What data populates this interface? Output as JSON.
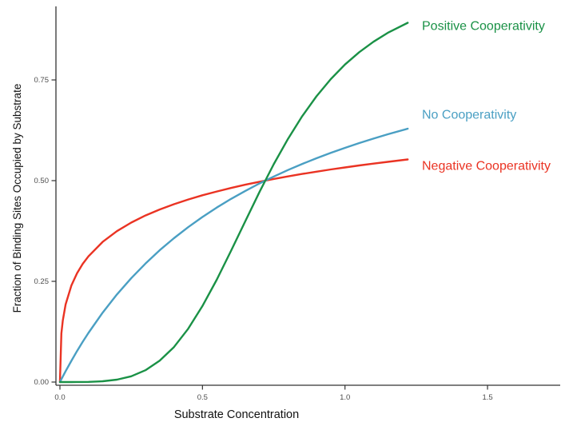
{
  "chart_data": {
    "type": "line",
    "title": "",
    "xlabel": "Substrate Concentration",
    "ylabel": "Fraction of Binding Sites Occupied by Substrate",
    "xlim": [
      -0.015,
      1.77
    ],
    "ylim": [
      -0.01,
      0.95
    ],
    "xticks": [
      0,
      0.5,
      1.0,
      1.5
    ],
    "xtick_labels": [
      "0.0",
      "0.5",
      "1.0",
      "1.5"
    ],
    "yticks": [
      0,
      0.25,
      0.5,
      0.75
    ],
    "ytick_labels": [
      "0.00",
      "0.25",
      "0.50",
      "0.75"
    ],
    "grid": false,
    "legend_position": "direct-labels-right-of-curves",
    "x": [
      0,
      0.005,
      0.01,
      0.02,
      0.04,
      0.06,
      0.08,
      0.1,
      0.15,
      0.2,
      0.25,
      0.3,
      0.35,
      0.4,
      0.45,
      0.5,
      0.55,
      0.6,
      0.65,
      0.7,
      0.75,
      0.8,
      0.85,
      0.9,
      0.95,
      1.0,
      1.05,
      1.1,
      1.15,
      1.22
    ],
    "series": [
      {
        "name": "Positive Cooperativity",
        "color": "#1a9146",
        "values": [
          0,
          0,
          0,
          0,
          0,
          0.0001,
          0.0002,
          0.0004,
          0.0019,
          0.0059,
          0.0143,
          0.0293,
          0.0529,
          0.087,
          0.1324,
          0.1887,
          0.254,
          0.3253,
          0.3991,
          0.4718,
          0.5407,
          0.6038,
          0.6602,
          0.7094,
          0.7519,
          0.7882,
          0.8189,
          0.8449,
          0.8668,
          0.8918
        ]
      },
      {
        "name": "No Cooperativity",
        "color": "#4a9fc3",
        "values": [
          0,
          0.0069,
          0.0137,
          0.027,
          0.0526,
          0.0769,
          0.1,
          0.122,
          0.1724,
          0.2174,
          0.2577,
          0.2941,
          0.3271,
          0.3571,
          0.3846,
          0.4098,
          0.4331,
          0.4545,
          0.4745,
          0.493,
          0.5102,
          0.5263,
          0.5414,
          0.5556,
          0.5689,
          0.5814,
          0.5932,
          0.6044,
          0.615,
          0.6289
        ]
      },
      {
        "name": "Negative Cooperativity",
        "color": "#ea3323",
        "values": [
          0,
          0.1205,
          0.153,
          0.1926,
          0.2394,
          0.2701,
          0.2934,
          0.3122,
          0.3481,
          0.3746,
          0.3958,
          0.4134,
          0.4283,
          0.4415,
          0.4531,
          0.4636,
          0.4731,
          0.4818,
          0.4898,
          0.4972,
          0.5041,
          0.5105,
          0.5166,
          0.5223,
          0.5277,
          0.5328,
          0.5376,
          0.5423,
          0.5467,
          0.5525
        ]
      }
    ],
    "annotations": [
      {
        "text": "Positive Cooperativity",
        "color": "#1a9146",
        "x": 1.27,
        "y": 0.885
      },
      {
        "text": "No Cooperativity",
        "color": "#4a9fc3",
        "x": 1.27,
        "y": 0.665
      },
      {
        "text": "Negative Cooperativity",
        "color": "#ea3323",
        "x": 1.27,
        "y": 0.538
      }
    ],
    "style": {
      "axis_color": "#333333",
      "tick_label_color": "#4d4d4d",
      "line_width": 2.4
    }
  }
}
